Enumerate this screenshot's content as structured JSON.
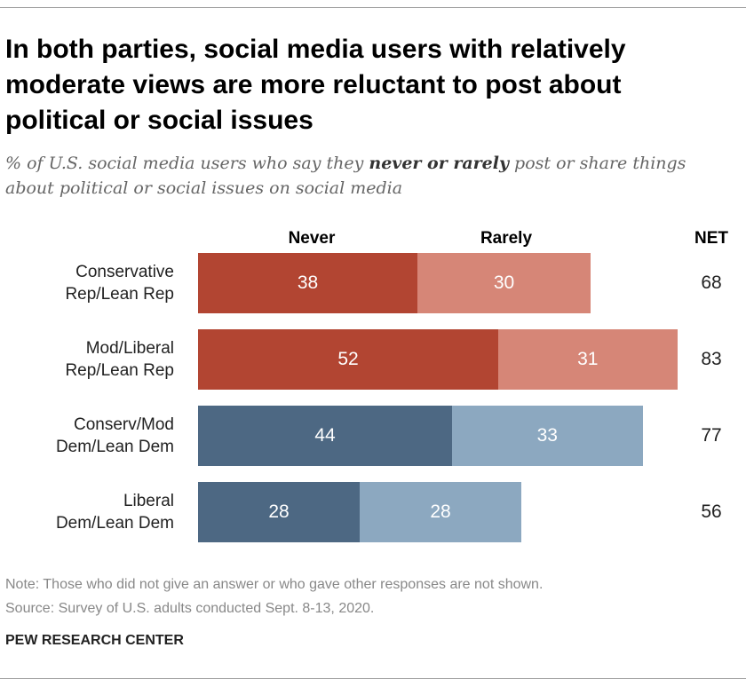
{
  "chart_data": {
    "type": "bar",
    "orientation": "horizontal",
    "stacked": true,
    "title": "In both parties, social media users with relatively moderate views are more reluctant to post about political or social issues",
    "subtitle_pre": "% of U.S. social media users who say they ",
    "subtitle_bold": "never or rarely",
    "subtitle_post": " post or share things about political or social issues on social media",
    "categories": [
      [
        "Conservative",
        "Rep/Lean Rep"
      ],
      [
        "Mod/Liberal",
        "Rep/Lean Rep"
      ],
      [
        "Conserv/Mod",
        "Dem/Lean Dem"
      ],
      [
        "Liberal",
        "Dem/Lean Dem"
      ]
    ],
    "series": [
      {
        "name": "Never",
        "values": [
          38,
          52,
          44,
          28
        ]
      },
      {
        "name": "Rarely",
        "values": [
          30,
          31,
          33,
          28
        ]
      }
    ],
    "net_label": "NET",
    "net": [
      68,
      83,
      77,
      56
    ],
    "colors": {
      "rep_never": "#b24532",
      "rep_rarely": "#d68677",
      "dem_never": "#4d6883",
      "dem_rarely": "#8ca8c0"
    },
    "grid": false,
    "legend": "top"
  },
  "footer": {
    "note": "Note: Those who did not give an answer or who gave other responses are not shown.",
    "source": "Source: Survey of U.S. adults conducted Sept. 8-13, 2020.",
    "brand": "PEW RESEARCH CENTER"
  }
}
